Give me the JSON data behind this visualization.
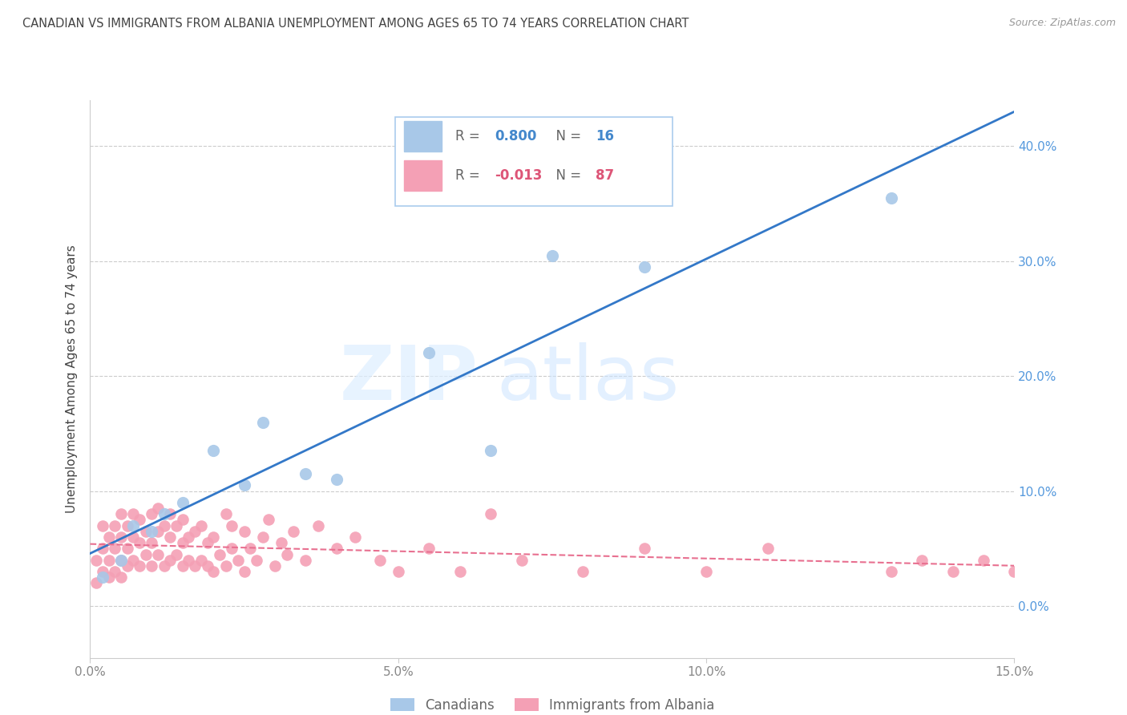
{
  "title": "CANADIAN VS IMMIGRANTS FROM ALBANIA UNEMPLOYMENT AMONG AGES 65 TO 74 YEARS CORRELATION CHART",
  "source": "Source: ZipAtlas.com",
  "ylabel": "Unemployment Among Ages 65 to 74 years",
  "xlim": [
    0.0,
    0.15
  ],
  "ylim": [
    -0.045,
    0.44
  ],
  "canadian_R": 0.8,
  "canadian_N": 16,
  "albania_R": -0.013,
  "albania_N": 87,
  "canadian_color": "#a8c8e8",
  "albania_color": "#f4a0b5",
  "canadian_line_color": "#3378c8",
  "albania_line_color": "#e87090",
  "background_color": "#ffffff",
  "grid_color": "#cccccc",
  "tick_color": "#888888",
  "title_color": "#444444",
  "canadian_x": [
    0.002,
    0.005,
    0.007,
    0.01,
    0.012,
    0.015,
    0.02,
    0.025,
    0.028,
    0.035,
    0.04,
    0.055,
    0.065,
    0.075,
    0.09,
    0.13
  ],
  "canadian_y": [
    0.025,
    0.04,
    0.07,
    0.065,
    0.08,
    0.09,
    0.135,
    0.105,
    0.16,
    0.115,
    0.11,
    0.22,
    0.135,
    0.305,
    0.295,
    0.355
  ],
  "albania_x": [
    0.001,
    0.001,
    0.002,
    0.002,
    0.002,
    0.003,
    0.003,
    0.003,
    0.004,
    0.004,
    0.004,
    0.005,
    0.005,
    0.005,
    0.005,
    0.006,
    0.006,
    0.006,
    0.007,
    0.007,
    0.007,
    0.008,
    0.008,
    0.008,
    0.009,
    0.009,
    0.01,
    0.01,
    0.01,
    0.011,
    0.011,
    0.011,
    0.012,
    0.012,
    0.013,
    0.013,
    0.013,
    0.014,
    0.014,
    0.015,
    0.015,
    0.015,
    0.016,
    0.016,
    0.017,
    0.017,
    0.018,
    0.018,
    0.019,
    0.019,
    0.02,
    0.02,
    0.021,
    0.022,
    0.022,
    0.023,
    0.023,
    0.024,
    0.025,
    0.025,
    0.026,
    0.027,
    0.028,
    0.029,
    0.03,
    0.031,
    0.032,
    0.033,
    0.035,
    0.037,
    0.04,
    0.043,
    0.047,
    0.05,
    0.055,
    0.06,
    0.065,
    0.07,
    0.08,
    0.09,
    0.1,
    0.11,
    0.13,
    0.135,
    0.14,
    0.145,
    0.15
  ],
  "albania_y": [
    0.04,
    0.02,
    0.05,
    0.07,
    0.03,
    0.04,
    0.06,
    0.025,
    0.05,
    0.07,
    0.03,
    0.04,
    0.06,
    0.08,
    0.025,
    0.05,
    0.07,
    0.035,
    0.04,
    0.06,
    0.08,
    0.035,
    0.055,
    0.075,
    0.045,
    0.065,
    0.035,
    0.055,
    0.08,
    0.045,
    0.065,
    0.085,
    0.035,
    0.07,
    0.04,
    0.06,
    0.08,
    0.045,
    0.07,
    0.035,
    0.055,
    0.075,
    0.04,
    0.06,
    0.035,
    0.065,
    0.04,
    0.07,
    0.035,
    0.055,
    0.03,
    0.06,
    0.045,
    0.035,
    0.08,
    0.05,
    0.07,
    0.04,
    0.03,
    0.065,
    0.05,
    0.04,
    0.06,
    0.075,
    0.035,
    0.055,
    0.045,
    0.065,
    0.04,
    0.07,
    0.05,
    0.06,
    0.04,
    0.03,
    0.05,
    0.03,
    0.08,
    0.04,
    0.03,
    0.05,
    0.03,
    0.05,
    0.03,
    0.04,
    0.03,
    0.04,
    0.03
  ]
}
